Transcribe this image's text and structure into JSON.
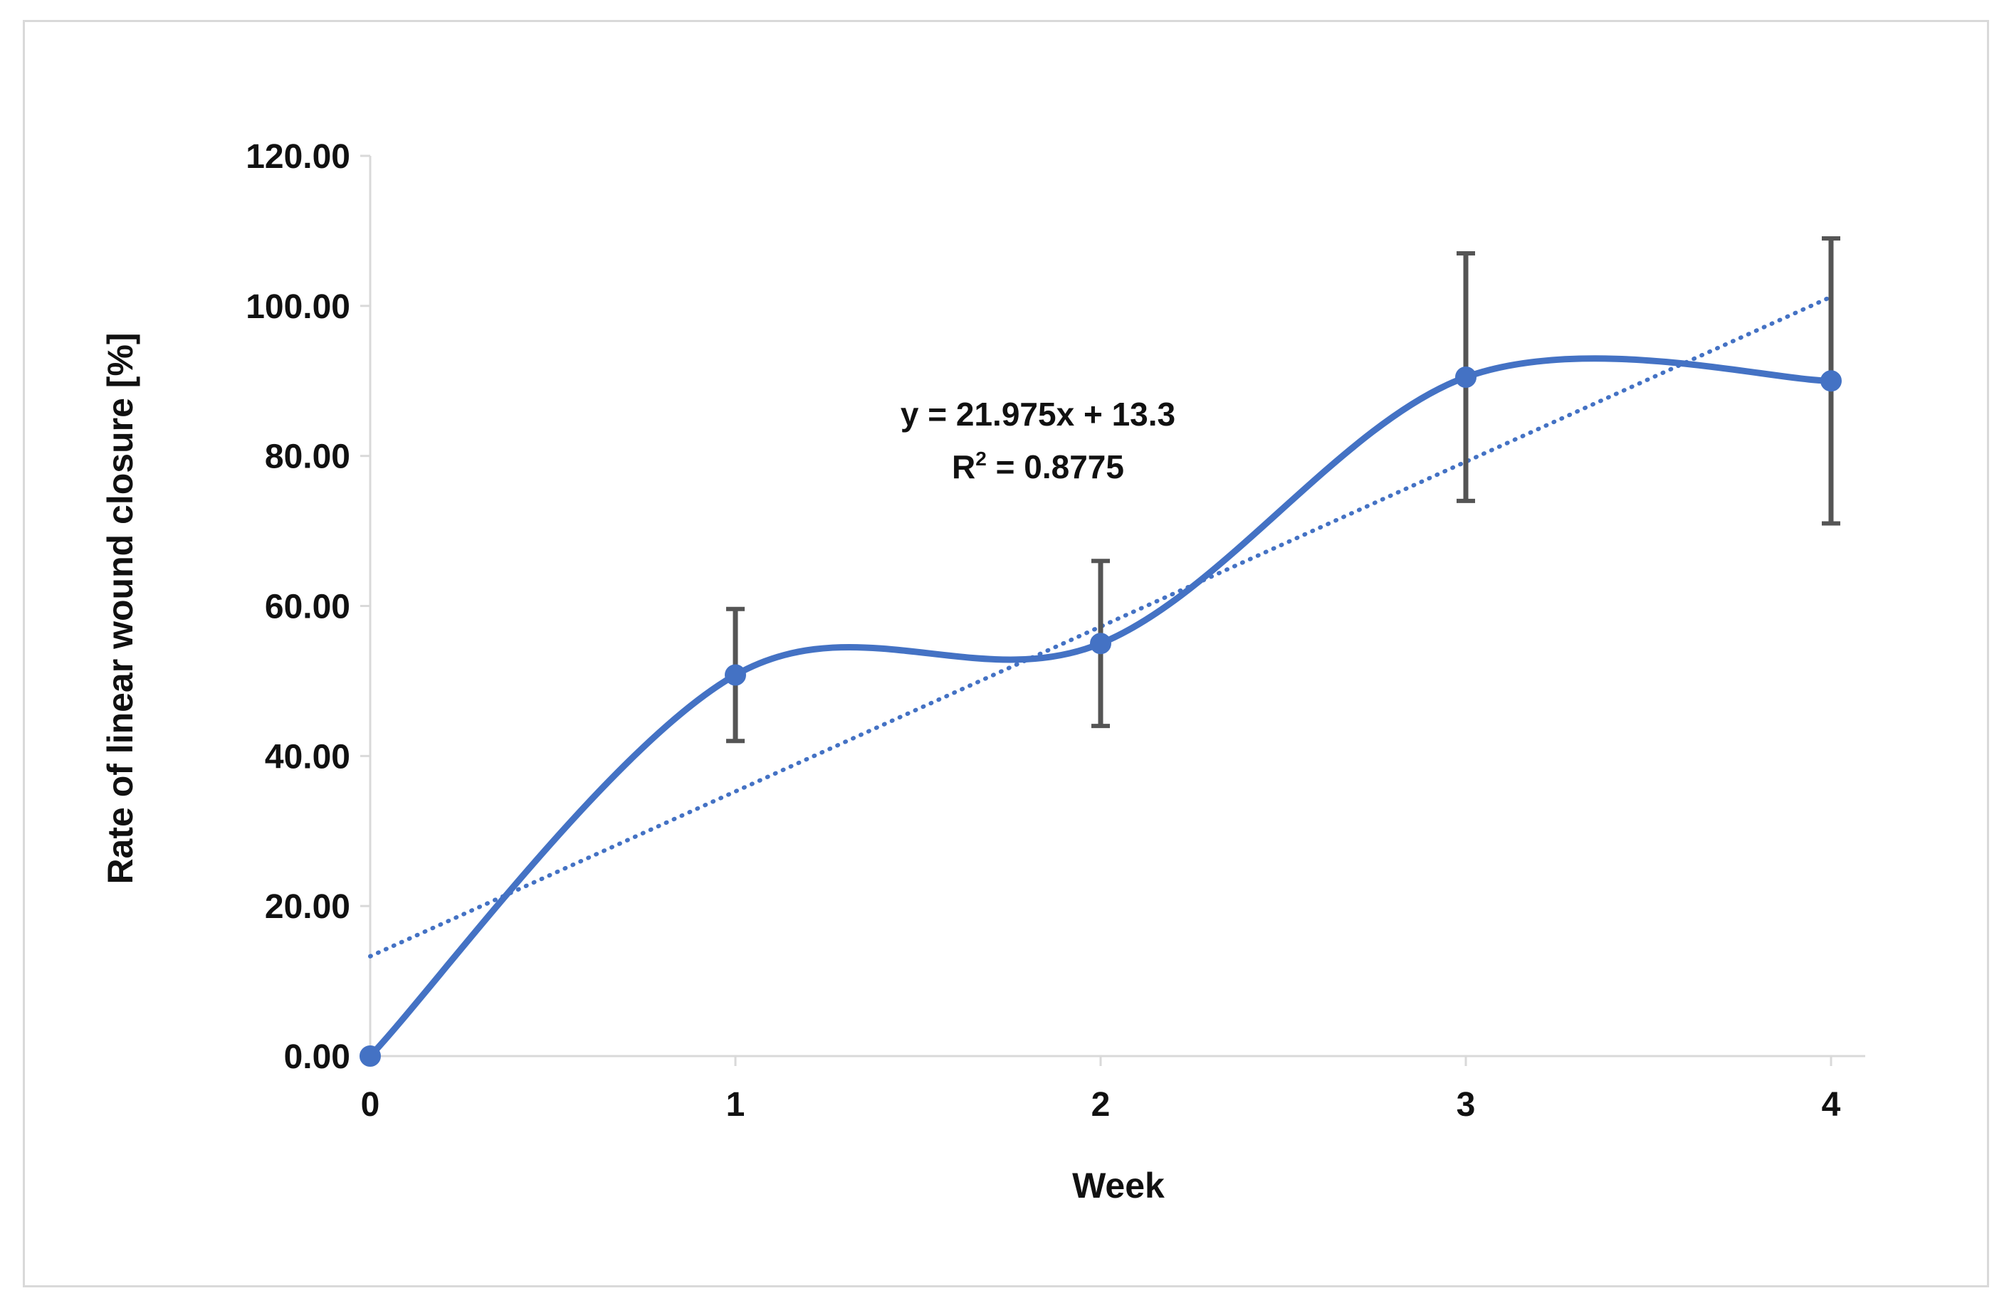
{
  "chart_data": {
    "type": "line",
    "title": "",
    "xlabel": "Week",
    "ylabel": "Rate of linear wound closure [%]",
    "x": [
      0,
      1,
      2,
      3,
      4
    ],
    "x_tick_labels": [
      "0",
      "1",
      "2",
      "3",
      "4"
    ],
    "y_tick_labels": [
      "0.00",
      "20.00",
      "40.00",
      "60.00",
      "80.00",
      "100.00",
      "120.00"
    ],
    "y_ticks": [
      0,
      20,
      40,
      60,
      80,
      100,
      120
    ],
    "xlim": [
      0,
      4.1
    ],
    "ylim": [
      0,
      120
    ],
    "grid": false,
    "legend": "none",
    "series": [
      {
        "name": "Rate of linear wound closure",
        "values": [
          0,
          50.8,
          55.0,
          90.5,
          90.0
        ],
        "error": [
          0,
          8.8,
          11.0,
          16.5,
          19.0
        ],
        "color": "#4472c4",
        "smoothed": true,
        "markers": true
      }
    ],
    "trendline": {
      "type": "linear",
      "slope": 21.975,
      "intercept": 13.3,
      "style": "dotted",
      "color": "#4472c4"
    },
    "annotations": {
      "equation": "y = 21.975x + 13.3",
      "r_squared_label": "R",
      "r_squared_sup": "2",
      "r_squared_value": " = 0.8775"
    },
    "error_bar_color": "#555555",
    "axis_color": "#d9d9d9"
  }
}
